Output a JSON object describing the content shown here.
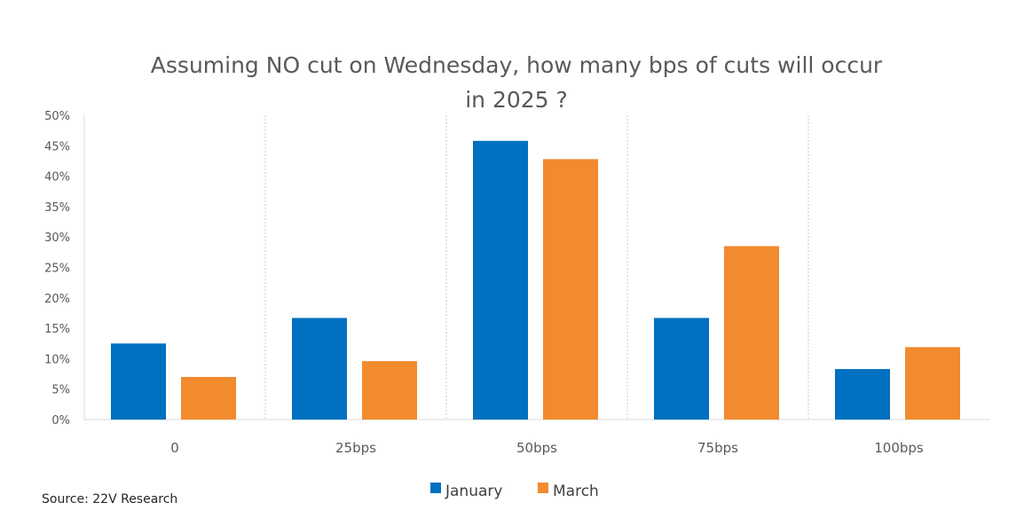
{
  "chart_data": {
    "type": "bar",
    "title_line1": "Assuming NO cut on Wednesday, how many bps of cuts will occur",
    "title_line2": "in 2025 ?",
    "categories": [
      "0",
      "25bps",
      "50bps",
      "75bps",
      "100bps"
    ],
    "series": [
      {
        "name": "January",
        "color": "#0070C0",
        "values": [
          12.5,
          16.7,
          45.8,
          16.7,
          8.3
        ]
      },
      {
        "name": "March",
        "color": "#F28A2E",
        "values": [
          7.0,
          9.6,
          42.8,
          28.5,
          11.9
        ]
      }
    ],
    "ylim": [
      0,
      50
    ],
    "ytick_labels": [
      "0%",
      "5%",
      "10%",
      "15%",
      "20%",
      "25%",
      "30%",
      "35%",
      "40%",
      "45%",
      "50%"
    ],
    "legend_position": "bottom-center",
    "xlabel": "",
    "ylabel": ""
  },
  "source": "Source: 22V Research"
}
